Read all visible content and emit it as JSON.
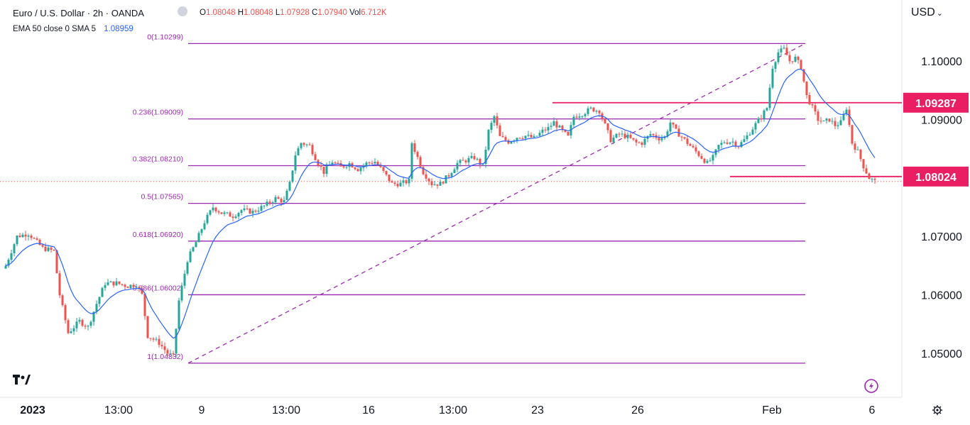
{
  "header": {
    "symbol_title": "Euro / U.S. Dollar · 2h · OANDA",
    "ohlc": [
      {
        "k": "O",
        "v": "1.08048"
      },
      {
        "k": "H",
        "v": "1.08048"
      },
      {
        "k": "L",
        "v": "1.07928"
      },
      {
        "k": "C",
        "v": "1.07940"
      },
      {
        "k": "Vol",
        "v": "6.712K"
      }
    ],
    "indicator_label": "EMA 50 close 0 SMA 5",
    "indicator_value": "1.08959",
    "currency": "USD"
  },
  "colors": {
    "up": "#26a69a",
    "down": "#ef5350",
    "ema": "#2962ff",
    "fib": "#9c27b0",
    "level": "#e91e63"
  },
  "chart_data": {
    "type": "candlestick",
    "y_axis": {
      "min": 1.043,
      "max": 1.1065,
      "ticks": [
        "1.05000",
        "1.06000",
        "1.07000",
        "1.08000",
        "1.09000",
        "1.10000"
      ]
    },
    "x_ticks": [
      "2023",
      "13:00",
      "9",
      "13:00",
      "16",
      "13:00",
      "23",
      "26",
      "Feb",
      "6"
    ],
    "fib_levels": [
      {
        "label": "0(1.10299)",
        "price": 1.10299
      },
      {
        "label": "0.236(1.09009)",
        "price": 1.09009
      },
      {
        "label": "0.382(1.08210)",
        "price": 1.0821
      },
      {
        "label": "0.5(1.07565)",
        "price": 1.07565
      },
      {
        "label": "0.618(1.06920)",
        "price": 1.0692
      },
      {
        "label": "0.786(1.06002)",
        "price": 1.06002
      },
      {
        "label": "1(1.04832)",
        "price": 1.04832
      }
    ],
    "resistance": {
      "label": "1.09287",
      "price": 1.09287
    },
    "support": {
      "label": "1.08024",
      "price": 1.08024
    },
    "last_price": 1.0794,
    "anchors": [
      [
        0,
        1.065
      ],
      [
        4,
        1.07
      ],
      [
        8,
        1.0705
      ],
      [
        13,
        1.068
      ],
      [
        17,
        1.0675
      ],
      [
        19,
        1.06
      ],
      [
        22,
        1.0535
      ],
      [
        26,
        1.0555
      ],
      [
        29,
        1.0545
      ],
      [
        32,
        1.0585
      ],
      [
        35,
        1.062
      ],
      [
        39,
        1.062
      ],
      [
        43,
        1.0615
      ],
      [
        46,
        1.0618
      ],
      [
        48,
        1.06
      ],
      [
        50,
        1.053
      ],
      [
        54,
        1.0518
      ],
      [
        57,
        1.05
      ],
      [
        59,
        1.0495
      ],
      [
        61,
        1.059
      ],
      [
        64,
        1.066
      ],
      [
        67,
        1.069
      ],
      [
        70,
        1.0725
      ],
      [
        73,
        1.075
      ],
      [
        76,
        1.074
      ],
      [
        80,
        1.0735
      ],
      [
        83,
        1.0745
      ],
      [
        87,
        1.0742
      ],
      [
        91,
        1.0752
      ],
      [
        95,
        1.0765
      ],
      [
        98,
        1.076
      ],
      [
        100,
        1.079
      ],
      [
        102,
        1.084
      ],
      [
        104,
        1.086
      ],
      [
        107,
        1.0855
      ],
      [
        110,
        1.0825
      ],
      [
        112,
        1.081
      ],
      [
        115,
        1.0828
      ],
      [
        118,
        1.0818
      ],
      [
        121,
        1.0825
      ],
      [
        124,
        1.0815
      ],
      [
        127,
        1.0825
      ],
      [
        130,
        1.0828
      ],
      [
        133,
        1.081
      ],
      [
        136,
        1.079
      ],
      [
        139,
        1.079
      ],
      [
        142,
        1.0795
      ],
      [
        143,
        1.086
      ],
      [
        145,
        1.0835
      ],
      [
        147,
        1.081
      ],
      [
        150,
        1.079
      ],
      [
        153,
        1.079
      ],
      [
        156,
        1.0805
      ],
      [
        159,
        1.0825
      ],
      [
        162,
        1.083
      ],
      [
        165,
        1.0835
      ],
      [
        168,
        1.082
      ],
      [
        170,
        1.088
      ],
      [
        172,
        1.0905
      ],
      [
        174,
        1.087
      ],
      [
        177,
        1.0862
      ],
      [
        180,
        1.087
      ],
      [
        183,
        1.0872
      ],
      [
        186,
        1.0868
      ],
      [
        189,
        1.088
      ],
      [
        191,
        1.0885
      ],
      [
        193,
        1.0895
      ],
      [
        195,
        1.0885
      ],
      [
        198,
        1.087
      ],
      [
        200,
        1.0905
      ],
      [
        203,
        1.091
      ],
      [
        206,
        1.0918
      ],
      [
        209,
        1.0915
      ],
      [
        211,
        1.089
      ],
      [
        213,
        1.0865
      ],
      [
        216,
        1.0875
      ],
      [
        219,
        1.087
      ],
      [
        222,
        1.086
      ],
      [
        224,
        1.086
      ],
      [
        227,
        1.0875
      ],
      [
        230,
        1.0868
      ],
      [
        232,
        1.087
      ],
      [
        234,
        1.0895
      ],
      [
        236,
        1.088
      ],
      [
        239,
        1.0865
      ],
      [
        242,
        1.085
      ],
      [
        245,
        1.0835
      ],
      [
        247,
        1.0825
      ],
      [
        249,
        1.0835
      ],
      [
        251,
        1.0855
      ],
      [
        253,
        1.0862
      ],
      [
        256,
        1.0862
      ],
      [
        258,
        1.0855
      ],
      [
        260,
        1.0865
      ],
      [
        263,
        1.0885
      ],
      [
        266,
        1.0905
      ],
      [
        268,
        1.092
      ],
      [
        270,
        1.099
      ],
      [
        272,
        1.1015
      ],
      [
        274,
        1.102
      ],
      [
        276,
        1.1
      ],
      [
        278,
        1.1005
      ],
      [
        280,
        1.099
      ],
      [
        282,
        1.094
      ],
      [
        284,
        1.092
      ],
      [
        286,
        1.09
      ],
      [
        288,
        1.0895
      ],
      [
        290,
        1.09
      ],
      [
        292,
        1.089
      ],
      [
        294,
        1.0895
      ],
      [
        296,
        1.092
      ],
      [
        298,
        1.086
      ],
      [
        300,
        1.0845
      ],
      [
        302,
        1.082
      ],
      [
        304,
        1.08
      ],
      [
        306,
        1.0794
      ]
    ]
  }
}
